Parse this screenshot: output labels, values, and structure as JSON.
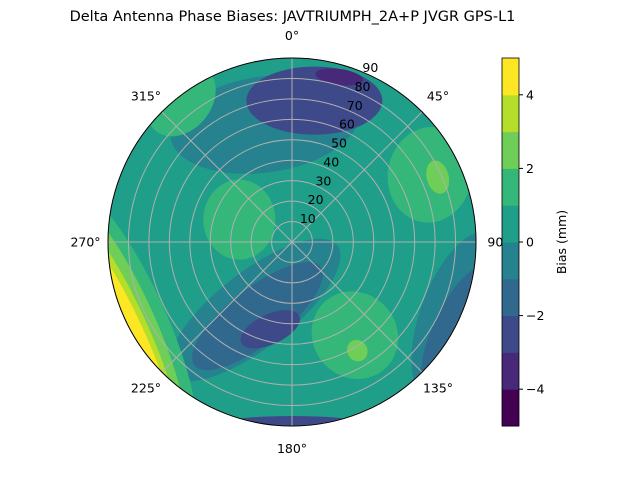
{
  "chart_data": {
    "type": "contour",
    "projection": "polar",
    "title": "Delta Antenna Phase Biases: JAVTRIUMPH_2A+P JVGR GPS-L1",
    "theta_zero": "top",
    "theta_direction": "clockwise",
    "theta_ticks": [
      "0°",
      "45°",
      "90°",
      "135°",
      "180°",
      "225°",
      "270°",
      "315°"
    ],
    "r_ticks": [
      "10",
      "20",
      "30",
      "40",
      "50",
      "60",
      "70",
      "80",
      "90"
    ],
    "r_range": [
      0,
      90
    ],
    "grid": true,
    "colormap": "viridis",
    "levels": [
      -5,
      -4,
      -3,
      -2,
      -1,
      0,
      1,
      2,
      3,
      4,
      5
    ],
    "level_colors": [
      "#440154",
      "#482878",
      "#3e4989",
      "#31688e",
      "#26828e",
      "#1f9e89",
      "#35b779",
      "#6ece58",
      "#b5de2b",
      "#fde725"
    ],
    "background_range": [
      0,
      1
    ],
    "regions": [
      {
        "azimuth": 347,
        "zenith": 59,
        "range": [
          -1,
          0
        ]
      },
      {
        "azimuth": 9,
        "zenith": 70,
        "range": [
          -3,
          -2
        ]
      },
      {
        "azimuth": 16,
        "zenith": 84,
        "range": [
          -4,
          -3
        ]
      },
      {
        "azimuth": 209,
        "zenith": 38,
        "range": [
          -1,
          0
        ]
      },
      {
        "azimuth": 205,
        "zenith": 40,
        "range": [
          -2,
          -1
        ]
      },
      {
        "azimuth": 194,
        "zenith": 44,
        "range": [
          -3,
          -2
        ]
      },
      {
        "azimuth": 293,
        "zenith": 28,
        "range": [
          1,
          2
        ]
      },
      {
        "azimuth": 64,
        "zenith": 75,
        "range": [
          1,
          2
        ]
      },
      {
        "azimuth": 66,
        "zenith": 78,
        "range": [
          2,
          3
        ]
      },
      {
        "azimuth": 146,
        "zenith": 55,
        "range": [
          1,
          2
        ]
      },
      {
        "azimuth": 149,
        "zenith": 62,
        "range": [
          2,
          3
        ]
      },
      {
        "azimuth": 322,
        "zenith": 88,
        "range": [
          1,
          2
        ]
      },
      {
        "azimuth": 114,
        "zenith": 90,
        "range": [
          -1,
          0
        ]
      },
      {
        "azimuth": 118,
        "zenith": 92,
        "range": [
          -2,
          -1
        ]
      },
      {
        "azimuth": 246,
        "zenith": 90,
        "range": [
          1,
          2
        ]
      },
      {
        "azimuth": 246,
        "zenith": 90,
        "range": [
          2,
          3
        ]
      },
      {
        "azimuth": 244,
        "zenith": 90,
        "range": [
          3,
          4
        ]
      },
      {
        "azimuth": 242,
        "zenith": 90,
        "range": [
          4,
          5
        ]
      },
      {
        "azimuth": 180,
        "zenith": 90,
        "range": [
          -3,
          -2
        ]
      }
    ],
    "colorbar": {
      "label": "Bias (mm)",
      "range": [
        -5,
        5
      ],
      "ticks": [
        "−4",
        "−2",
        "0",
        "2",
        "4"
      ],
      "tick_values": [
        -4,
        -2,
        0,
        2,
        4
      ]
    }
  }
}
